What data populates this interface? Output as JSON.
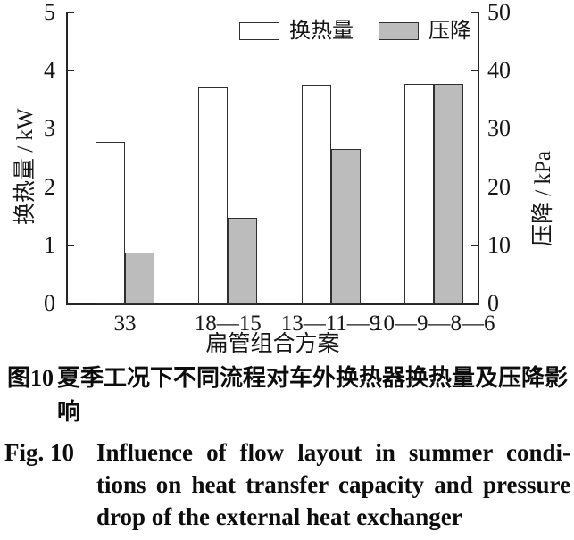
{
  "chart_data": {
    "type": "bar",
    "categories": [
      "33",
      "18—15",
      "13—11—9",
      "10—9—8—6"
    ],
    "series": [
      {
        "name": "换热量",
        "axis": "left",
        "unit": "kW",
        "fill": "#ffffff",
        "values": [
          2.78,
          3.71,
          3.76,
          3.78
        ]
      },
      {
        "name": "压降",
        "axis": "right",
        "unit": "kPa",
        "fill": "#bcbcbc",
        "values": [
          8.8,
          14.8,
          26.5,
          37.8
        ]
      }
    ],
    "left_axis": {
      "label": "换热量 / kW",
      "min": 0,
      "max": 5,
      "ticks": [
        0,
        1,
        2,
        3,
        4,
        5
      ]
    },
    "right_axis": {
      "label": "压降 / kPa",
      "min": 0,
      "max": 50,
      "ticks": [
        0,
        10,
        20,
        30,
        40,
        50
      ]
    },
    "xlabel": "扁管组合方案",
    "legend": {
      "position": "top",
      "entries": [
        "换热量",
        "压降"
      ]
    },
    "grid": false,
    "outline_color": "#2f2f2f"
  },
  "caption_zh": {
    "label": "图10",
    "lines": [
      "夏季工况下不同流程对车外换热器换热量及压降影",
      "响"
    ]
  },
  "caption_en": {
    "label": "Fig. 10",
    "lines": [
      "Influence of flow layout in summer condi-",
      "tions on heat transfer capacity and pressure",
      "drop of the external heat exchanger"
    ]
  }
}
